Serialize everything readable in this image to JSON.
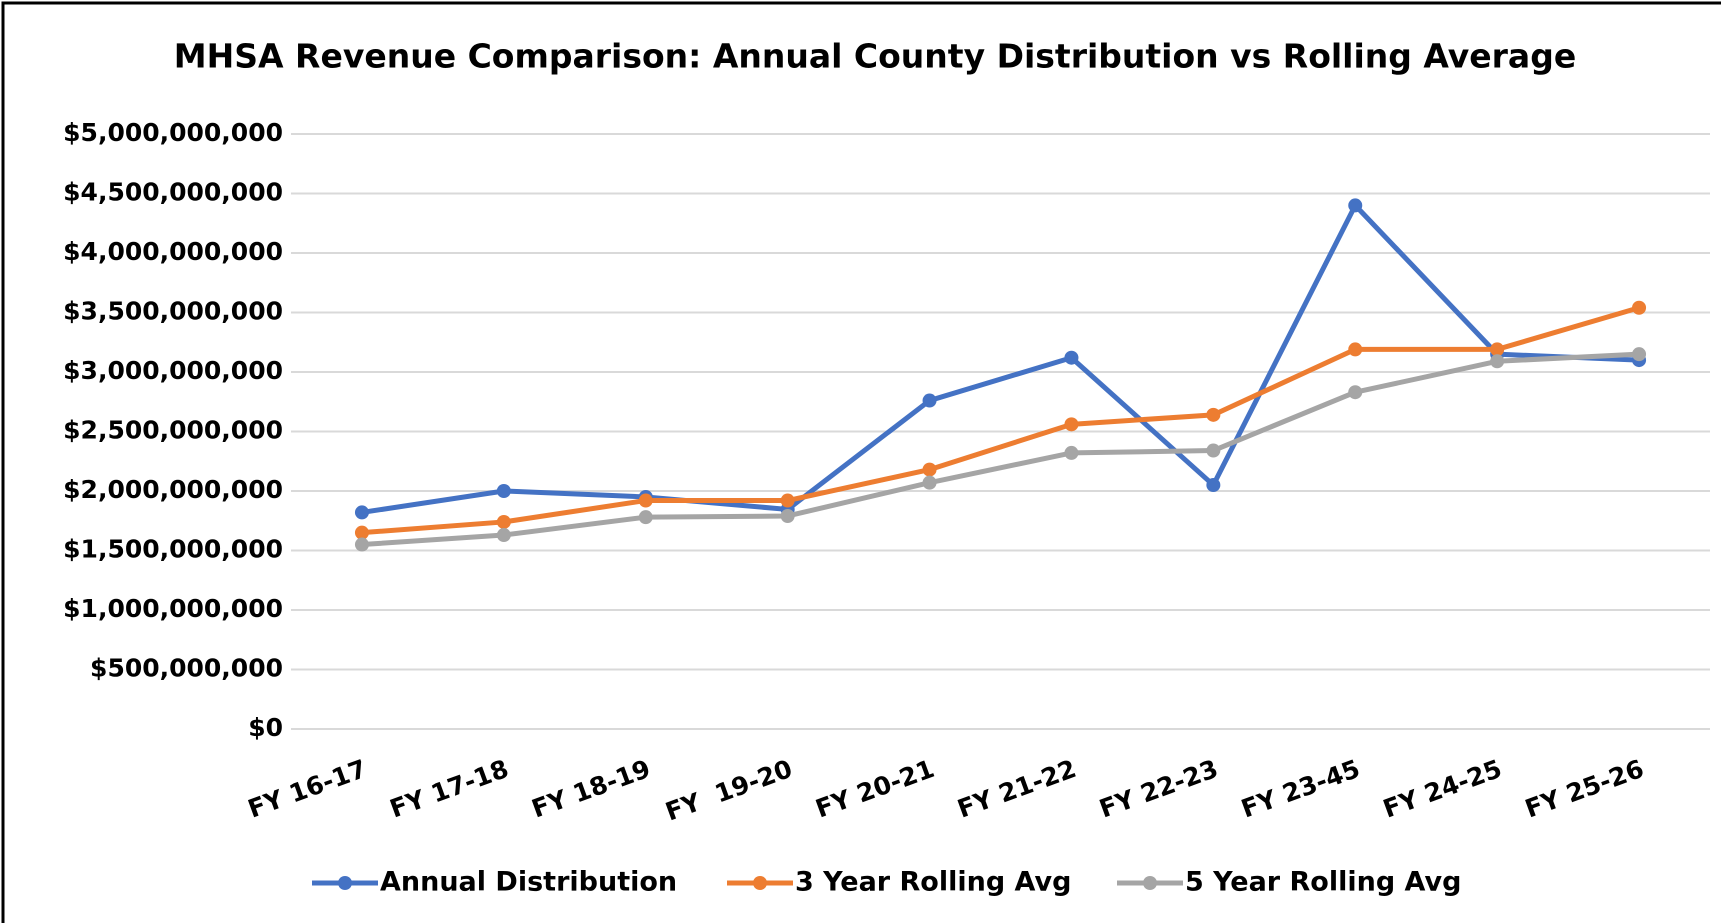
{
  "chart_data": {
    "type": "line",
    "title": "MHSA Revenue Comparison: Annual County Distribution vs Rolling Average",
    "categories": [
      "FY 16-17",
      "FY 17-18",
      "FY 18-19",
      "FY  19-20",
      "FY 20-21",
      "FY 21-22",
      "FY 22-23",
      "FY 23-45",
      "FY 24-25",
      "FY 25-26"
    ],
    "series": [
      {
        "name": "Annual Distribution",
        "color": "#4472c4",
        "values": [
          1820000000,
          2000000000,
          1950000000,
          1845000000,
          2760000000,
          3120000000,
          2050000000,
          4400000000,
          3150000000,
          3100000000
        ]
      },
      {
        "name": "3 Year Rolling Avg",
        "color": "#ed7d31",
        "values": [
          1650000000,
          1740000000,
          1920000000,
          1920000000,
          2180000000,
          2560000000,
          2640000000,
          3190000000,
          3190000000,
          3540000000
        ]
      },
      {
        "name": "5 Year Rolling Avg",
        "color": "#a5a5a5",
        "values": [
          1550000000,
          1630000000,
          1780000000,
          1790000000,
          2070000000,
          2320000000,
          2340000000,
          2830000000,
          3090000000,
          3150000000
        ]
      }
    ],
    "ylim": [
      0,
      5000000000
    ],
    "yticks": [
      {
        "value": 0,
        "label": "$0"
      },
      {
        "value": 500000000,
        "label": "$500,000,000"
      },
      {
        "value": 1000000000,
        "label": "$1,000,000,000"
      },
      {
        "value": 1500000000,
        "label": "$1,500,000,000"
      },
      {
        "value": 2000000000,
        "label": "$2,000,000,000"
      },
      {
        "value": 2500000000,
        "label": "$2,500,000,000"
      },
      {
        "value": 3000000000,
        "label": "$3,000,000,000"
      },
      {
        "value": 3500000000,
        "label": "$3,500,000,000"
      },
      {
        "value": 4000000000,
        "label": "$4,000,000,000"
      },
      {
        "value": 4500000000,
        "label": "$4,500,000,000"
      },
      {
        "value": 5000000000,
        "label": "$5,000,000,000"
      }
    ],
    "grid": true,
    "legend": "bottom"
  }
}
